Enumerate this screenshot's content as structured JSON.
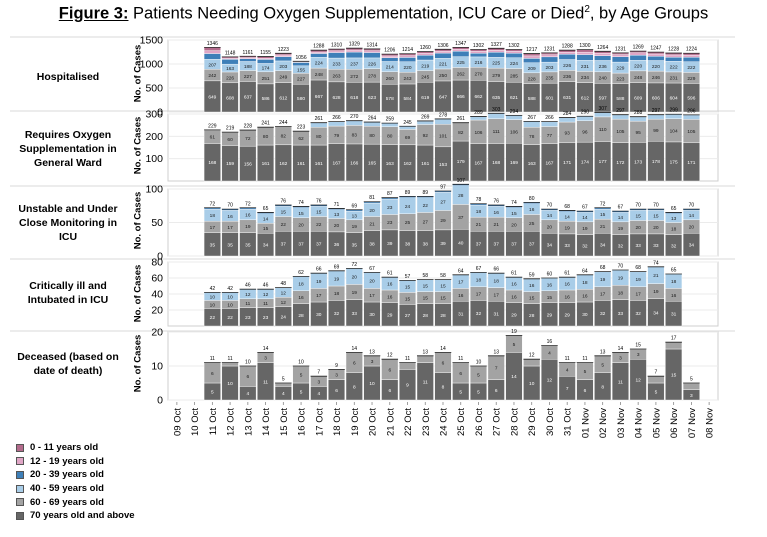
{
  "figure": {
    "title_lead": "Figure 3:",
    "title_rest": " Patients Needing Oxygen Supplementation, ICU Care or Died",
    "title_sup": "2",
    "title_tail": ", by Age Groups"
  },
  "legend": [
    {
      "label": "0 - 11 years old",
      "color": "#b36b8c"
    },
    {
      "label": "12 - 19 years old",
      "color": "#e0a6c6"
    },
    {
      "label": "20 - 39 years old",
      "color": "#3e7fb8"
    },
    {
      "label": "40 - 59 years old",
      "color": "#a9cde8"
    },
    {
      "label": "60 - 69 years old",
      "color": "#a3a3a3"
    },
    {
      "label": "70 years old and above",
      "color": "#666666"
    }
  ],
  "chart_data": {
    "type": "bar",
    "stacked": true,
    "x": [
      "09 Oct",
      "10 Oct",
      "11 Oct",
      "12 Oct",
      "13 Oct",
      "14 Oct",
      "15 Oct",
      "16 Oct",
      "17 Oct",
      "18 Oct",
      "19 Oct",
      "20 Oct",
      "21 Oct",
      "22 Oct",
      "23 Oct",
      "24 Oct",
      "25 Oct",
      "26 Oct",
      "27 Oct",
      "28 Oct",
      "29 Oct",
      "30 Oct",
      "31 Oct",
      "01 Nov",
      "02 Nov",
      "03 Nov",
      "04 Nov",
      "05 Nov",
      "06 Nov",
      "07 Nov",
      "08 Nov"
    ],
    "panels": [
      {
        "label": "Hospitalised",
        "ylabel": "No. of Cases",
        "ylim": [
          0,
          1500
        ],
        "yticks": [
          0,
          500,
          1000,
          1500
        ],
        "totals": [
          null,
          null,
          1346,
          1148,
          1161,
          1155,
          1223,
          1056,
          1288,
          1310,
          1329,
          1314,
          1206,
          1214,
          1260,
          1306,
          1347,
          1302,
          1327,
          1302,
          1217,
          1231,
          1288,
          1300,
          1264,
          1231,
          1269,
          1247,
          1228,
          1224,
          null
        ],
        "series": [
          {
            "name": "70 years old and above",
            "values": [
              null,
              null,
              649,
              608,
              637,
              586,
              612,
              580,
              667,
              628,
              618,
              623,
              578,
              584,
              619,
              647,
              666,
              662,
              635,
              621,
              588,
              601,
              631,
              612,
              597,
              588,
              609,
              606,
              604,
              596,
              null
            ]
          },
          {
            "name": "60 - 69 years old",
            "values": [
              null,
              null,
              242,
              226,
              227,
              251,
              249,
              227,
              248,
              263,
              272,
              278,
              260,
              243,
              245,
              250,
              262,
              270,
              279,
              285,
              228,
              235,
              236,
              234,
              240,
              223,
              248,
              246,
              231,
              229,
              null
            ]
          },
          {
            "name": "40 - 59 years old",
            "values": [
              null,
              null,
              207,
              163,
              188,
              174,
              203,
              155,
              224,
              233,
              237,
              226,
              214,
              220,
              219,
              221,
              225,
              216,
              225,
              224,
              209,
              203,
              226,
              231,
              236,
              229,
              220,
              220,
              222,
              222,
              null
            ]
          },
          {
            "name": "20 - 39 years old",
            "values": [
              null,
              null,
              120,
              100,
              60,
              85,
              90,
              70,
              80,
              115,
              122,
              112,
              80,
              90,
              100,
              110,
              115,
              75,
              105,
              95,
              92,
              110,
              110,
              120,
              101,
              111,
              107,
              90,
              85,
              93,
              null
            ]
          },
          {
            "name": "12 - 19 years old",
            "values": [
              null,
              null,
              60,
              25,
              20,
              25,
              35,
              12,
              30,
              35,
              42,
              38,
              36,
              38,
              40,
              40,
              40,
              40,
              43,
              39,
              52,
              45,
              42,
              50,
              50,
              45,
              50,
              47,
              47,
              45,
              null
            ]
          },
          {
            "name": "0 - 11 years old",
            "values": [
              null,
              null,
              68,
              26,
              29,
              34,
              34,
              12,
              39,
              36,
              38,
              37,
              38,
              39,
              37,
              38,
              39,
              39,
              40,
              38,
              48,
              37,
              43,
              53,
              40,
              35,
              35,
              38,
              39,
              39,
              null
            ]
          }
        ]
      },
      {
        "label": "Requires Oxygen Supplementation in General Ward",
        "ylabel": "No. of Cases",
        "ylim": [
          0,
          300
        ],
        "yticks": [
          100,
          200,
          300
        ],
        "totals": [
          null,
          null,
          229,
          219,
          228,
          241,
          244,
          223,
          261,
          266,
          270,
          264,
          259,
          245,
          269,
          278,
          261,
          289,
          303,
          294,
          267,
          266,
          284,
          290,
          307,
          297,
          288,
          297,
          299,
          296,
          null
        ],
        "series": [
          {
            "name": "70 years old and above",
            "values": [
              null,
              null,
              168,
              159,
              156,
              161,
              162,
              161,
              161,
              167,
              166,
              165,
              163,
              162,
              161,
              153,
              179,
              167,
              168,
              169,
              163,
              167,
              171,
              174,
              177,
              172,
              173,
              178,
              175,
              171,
              null
            ]
          },
          {
            "name": "60 - 69 years old",
            "values": [
              null,
              null,
              61,
              60,
              72,
              80,
              82,
              62,
              80,
              79,
              83,
              80,
              80,
              69,
              92,
              101,
              82,
              106,
              111,
              106,
              78,
              77,
              93,
              96,
              110,
              105,
              95,
              99,
              104,
              105,
              null
            ]
          },
          {
            "name": "40 - 59 years old",
            "values": [
              null,
              null,
              null,
              null,
              null,
              null,
              null,
              null,
              20,
              20,
              21,
              19,
              16,
              14,
              16,
              24,
              null,
              16,
              24,
              19,
              26,
              22,
              20,
              20,
              20,
              20,
              20,
              20,
              20,
              20,
              null
            ]
          }
        ]
      },
      {
        "label": "Unstable and Under Close Monitoring in ICU",
        "ylabel": "No. of Cases",
        "ylim": [
          0,
          100
        ],
        "yticks": [
          0,
          50,
          100
        ],
        "totals": [
          null,
          null,
          72,
          70,
          72,
          65,
          76,
          74,
          76,
          71,
          69,
          81,
          87,
          89,
          89,
          97,
          107,
          78,
          76,
          74,
          80,
          70,
          68,
          67,
          72,
          67,
          70,
          70,
          65,
          70,
          null
        ],
        "series": [
          {
            "name": "70 years old and above",
            "values": [
              null,
              null,
              35,
              35,
              35,
              34,
              37,
              37,
              37,
              36,
              35,
              38,
              39,
              38,
              38,
              39,
              40,
              37,
              37,
              37,
              37,
              34,
              33,
              32,
              34,
              32,
              33,
              33,
              32,
              34,
              null
            ]
          },
          {
            "name": "60 - 69 years old",
            "values": [
              null,
              null,
              17,
              17,
              19,
              15,
              22,
              20,
              22,
              20,
              19,
              21,
              23,
              25,
              27,
              29,
              37,
              21,
              21,
              20,
              25,
              20,
              19,
              19,
              21,
              19,
              20,
              20,
              18,
              20,
              null
            ]
          },
          {
            "name": "40 - 59 years old",
            "values": [
              null,
              null,
              18,
              16,
              16,
              14,
              15,
              15,
              15,
              13,
              13,
              20,
              23,
              24,
              22,
              27,
              28,
              18,
              16,
              15,
              16,
              14,
              14,
              14,
              15,
              14,
              15,
              15,
              13,
              14,
              null
            ]
          },
          {
            "name": "20 - 39 years old",
            "values": [
              null,
              null,
              2,
              2,
              2,
              2,
              2,
              2,
              2,
              2,
              2,
              2,
              2,
              2,
              2,
              2,
              2,
              2,
              2,
              2,
              2,
              2,
              2,
              2,
              2,
              2,
              2,
              2,
              2,
              2,
              null
            ]
          }
        ]
      },
      {
        "label": "Critically ill and Intubated in ICU",
        "ylabel": "No. of Cases",
        "ylim": [
          0,
          80
        ],
        "yticks": [
          20,
          40,
          60,
          80
        ],
        "totals": [
          null,
          null,
          42,
          42,
          46,
          46,
          48,
          62,
          66,
          69,
          72,
          67,
          61,
          57,
          58,
          58,
          64,
          67,
          66,
          61,
          59,
          60,
          61,
          64,
          68,
          70,
          68,
          74,
          65,
          null,
          null
        ],
        "series": [
          {
            "name": "70 years old and above",
            "values": [
              null,
              null,
              22,
              22,
              23,
              23,
              24,
              28,
              30,
              32,
              33,
              30,
              29,
              27,
              28,
              28,
              31,
              32,
              31,
              29,
              28,
              29,
              29,
              30,
              32,
              33,
              32,
              34,
              31,
              null,
              null
            ]
          },
          {
            "name": "60 - 69 years old",
            "values": [
              null,
              null,
              10,
              10,
              11,
              11,
              12,
              16,
              17,
              18,
              19,
              17,
              16,
              15,
              15,
              15,
              16,
              17,
              17,
              16,
              15,
              15,
              16,
              16,
              17,
              18,
              17,
              19,
              16,
              null,
              null
            ]
          },
          {
            "name": "40 - 59 years old",
            "values": [
              null,
              null,
              10,
              10,
              12,
              12,
              12,
              18,
              19,
              19,
              20,
              20,
              16,
              15,
              15,
              15,
              17,
              18,
              18,
              16,
              16,
              16,
              16,
              18,
              19,
              19,
              19,
              21,
              18,
              null,
              null
            ]
          }
        ]
      },
      {
        "label": "Deceased (based on date of death)",
        "ylabel": "No. of Cases",
        "ylim": [
          0,
          20
        ],
        "yticks": [
          0,
          10,
          20
        ],
        "totals": [
          null,
          null,
          11,
          11,
          10,
          14,
          5,
          10,
          7,
          9,
          14,
          13,
          12,
          11,
          13,
          14,
          11,
          10,
          13,
          19,
          12,
          16,
          11,
          11,
          13,
          14,
          15,
          7,
          17,
          5,
          null
        ],
        "series": [
          {
            "name": "70 years old and above",
            "values": [
              null,
              null,
              5,
              10,
              4,
              11,
              4,
              5,
              4,
              6,
              8,
              10,
              6,
              9,
              11,
              8,
              5,
              5,
              6,
              14,
              10,
              12,
              7,
              6,
              8,
              11,
              12,
              5,
              15,
              3,
              null
            ]
          },
          {
            "name": "60 - 69 years old",
            "values": [
              null,
              null,
              6,
              1,
              6,
              3,
              1,
              5,
              3,
              3,
              6,
              3,
              6,
              2,
              2,
              6,
              6,
              5,
              7,
              5,
              2,
              4,
              4,
              5,
              5,
              3,
              3,
              2,
              2,
              2,
              null
            ]
          }
        ]
      }
    ]
  }
}
